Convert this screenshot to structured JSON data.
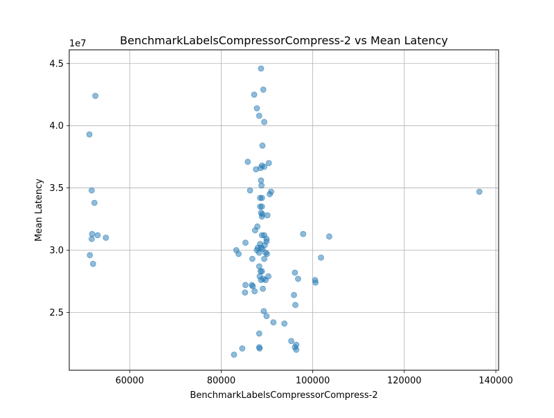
{
  "chart_data": {
    "type": "scatter",
    "title": "BenchmarkLabelsCompressorCompress-2 vs Mean Latency",
    "xlabel": "BenchmarkLabelsCompressorCompress-2",
    "ylabel": "Mean Latency",
    "y_offset_label": "1e7",
    "xlim": [
      46800,
      140600
    ],
    "ylim": [
      20350000,
      46100000
    ],
    "x_ticks": [
      60000,
      80000,
      100000,
      120000,
      140000
    ],
    "x_tick_labels": [
      "60000",
      "80000",
      "100000",
      "120000",
      "140000"
    ],
    "y_ticks": [
      25000000,
      30000000,
      35000000,
      40000000,
      45000000
    ],
    "y_tick_labels": [
      "2.5",
      "3.0",
      "3.5",
      "4.0",
      "4.5"
    ],
    "grid": true,
    "legend": "none",
    "point_color": "#1f77b4",
    "points": [
      {
        "x": 52500,
        "y": 42400000
      },
      {
        "x": 51200,
        "y": 39300000
      },
      {
        "x": 51700,
        "y": 34800000
      },
      {
        "x": 52300,
        "y": 33800000
      },
      {
        "x": 51800,
        "y": 31300000
      },
      {
        "x": 51700,
        "y": 30900000
      },
      {
        "x": 53000,
        "y": 31200000
      },
      {
        "x": 54800,
        "y": 31000000
      },
      {
        "x": 51300,
        "y": 29600000
      },
      {
        "x": 52000,
        "y": 28900000
      },
      {
        "x": 88700,
        "y": 44600000
      },
      {
        "x": 89200,
        "y": 42900000
      },
      {
        "x": 87200,
        "y": 42500000
      },
      {
        "x": 87800,
        "y": 41400000
      },
      {
        "x": 88300,
        "y": 40800000
      },
      {
        "x": 89400,
        "y": 40300000
      },
      {
        "x": 89000,
        "y": 38400000
      },
      {
        "x": 85800,
        "y": 37100000
      },
      {
        "x": 87600,
        "y": 36500000
      },
      {
        "x": 88600,
        "y": 36600000
      },
      {
        "x": 88900,
        "y": 36800000
      },
      {
        "x": 89400,
        "y": 36700000
      },
      {
        "x": 90400,
        "y": 37000000
      },
      {
        "x": 88700,
        "y": 35600000
      },
      {
        "x": 88800,
        "y": 35200000
      },
      {
        "x": 86300,
        "y": 34800000
      },
      {
        "x": 90600,
        "y": 34500000
      },
      {
        "x": 90900,
        "y": 34700000
      },
      {
        "x": 88500,
        "y": 34200000
      },
      {
        "x": 88900,
        "y": 34200000
      },
      {
        "x": 88500,
        "y": 33500000
      },
      {
        "x": 88900,
        "y": 33500000
      },
      {
        "x": 88700,
        "y": 33000000
      },
      {
        "x": 89000,
        "y": 32900000
      },
      {
        "x": 88900,
        "y": 32700000
      },
      {
        "x": 90100,
        "y": 32800000
      },
      {
        "x": 87900,
        "y": 31900000
      },
      {
        "x": 87400,
        "y": 31600000
      },
      {
        "x": 88900,
        "y": 31200000
      },
      {
        "x": 89400,
        "y": 31200000
      },
      {
        "x": 97900,
        "y": 31300000
      },
      {
        "x": 103600,
        "y": 31100000
      },
      {
        "x": 89900,
        "y": 30900000
      },
      {
        "x": 89900,
        "y": 30700000
      },
      {
        "x": 85300,
        "y": 30600000
      },
      {
        "x": 88500,
        "y": 30500000
      },
      {
        "x": 89500,
        "y": 30400000
      },
      {
        "x": 88000,
        "y": 30200000
      },
      {
        "x": 88700,
        "y": 30200000
      },
      {
        "x": 87800,
        "y": 30000000
      },
      {
        "x": 89000,
        "y": 30100000
      },
      {
        "x": 83300,
        "y": 30000000
      },
      {
        "x": 88300,
        "y": 29800000
      },
      {
        "x": 89700,
        "y": 29800000
      },
      {
        "x": 90000,
        "y": 29700000
      },
      {
        "x": 83800,
        "y": 29700000
      },
      {
        "x": 86800,
        "y": 29300000
      },
      {
        "x": 89400,
        "y": 29300000
      },
      {
        "x": 101800,
        "y": 29400000
      },
      {
        "x": 88300,
        "y": 28700000
      },
      {
        "x": 88600,
        "y": 28300000
      },
      {
        "x": 88900,
        "y": 28300000
      },
      {
        "x": 96100,
        "y": 28200000
      },
      {
        "x": 88400,
        "y": 27900000
      },
      {
        "x": 90300,
        "y": 27900000
      },
      {
        "x": 89200,
        "y": 27700000
      },
      {
        "x": 88700,
        "y": 27600000
      },
      {
        "x": 89700,
        "y": 27600000
      },
      {
        "x": 96800,
        "y": 27700000
      },
      {
        "x": 100500,
        "y": 27600000
      },
      {
        "x": 100600,
        "y": 27400000
      },
      {
        "x": 85300,
        "y": 27200000
      },
      {
        "x": 86700,
        "y": 27200000
      },
      {
        "x": 86900,
        "y": 27100000
      },
      {
        "x": 89100,
        "y": 26900000
      },
      {
        "x": 85200,
        "y": 26600000
      },
      {
        "x": 87300,
        "y": 26700000
      },
      {
        "x": 95900,
        "y": 26400000
      },
      {
        "x": 96200,
        "y": 25600000
      },
      {
        "x": 89300,
        "y": 25100000
      },
      {
        "x": 89900,
        "y": 24700000
      },
      {
        "x": 91400,
        "y": 24200000
      },
      {
        "x": 93800,
        "y": 24100000
      },
      {
        "x": 88300,
        "y": 23300000
      },
      {
        "x": 95300,
        "y": 22700000
      },
      {
        "x": 96400,
        "y": 22400000
      },
      {
        "x": 96100,
        "y": 22200000
      },
      {
        "x": 88300,
        "y": 22200000
      },
      {
        "x": 88400,
        "y": 22100000
      },
      {
        "x": 84600,
        "y": 22100000
      },
      {
        "x": 96400,
        "y": 22000000
      },
      {
        "x": 82800,
        "y": 21600000
      },
      {
        "x": 136400,
        "y": 34700000
      }
    ]
  }
}
